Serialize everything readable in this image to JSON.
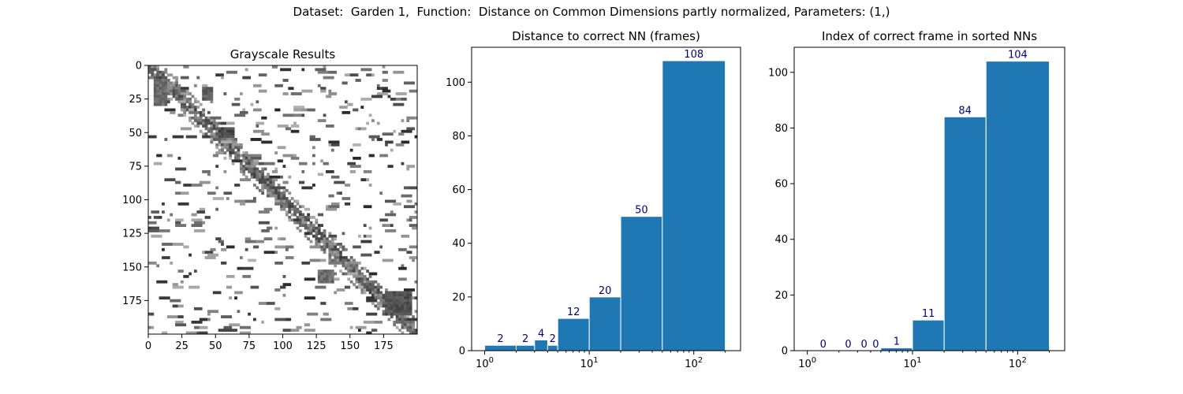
{
  "suptitle": "Dataset:  Garden 1,  Function:  Distance on Common Dimensions partly normalized, Parameters: (1,)",
  "colors": {
    "bar": "#1f77b4",
    "bar_edge": "#ffffff",
    "label": "#00007f",
    "axis": "#000000"
  },
  "chart_data": [
    {
      "type": "heatmap",
      "title": "Grayscale Results",
      "xlim": [
        0,
        200
      ],
      "ylim": [
        200,
        0
      ],
      "x_ticks": [
        0,
        25,
        50,
        75,
        100,
        125,
        150,
        175
      ],
      "y_ticks": [
        0,
        25,
        50,
        75,
        100,
        125,
        150,
        175
      ],
      "colormap": "gray",
      "note_values": "200x200 matrix of per-frame results; white = no match, dark = strong match; main structure along the diagonal"
    },
    {
      "type": "bar",
      "title": "Distance to correct NN (frames)",
      "xscale": "log",
      "xlim": [
        0.75,
        280
      ],
      "ylim": [
        0,
        113
      ],
      "x_tick_labels": [
        "10^0",
        "10^1",
        "10^2"
      ],
      "y_ticks": [
        0,
        20,
        40,
        60,
        80,
        100
      ],
      "bins": [
        [
          1,
          2
        ],
        [
          2,
          3
        ],
        [
          3,
          4
        ],
        [
          4,
          5
        ],
        [
          5,
          10
        ],
        [
          10,
          20
        ],
        [
          20,
          50
        ],
        [
          50,
          200
        ]
      ],
      "values": [
        2,
        2,
        4,
        2,
        12,
        20,
        50,
        108
      ],
      "labels": [
        "2",
        "2",
        "4",
        "2",
        "12",
        "20",
        "50",
        "108"
      ]
    },
    {
      "type": "bar",
      "title": "Index of correct frame in sorted NNs",
      "xscale": "log",
      "xlim": [
        0.75,
        280
      ],
      "ylim": [
        0,
        109
      ],
      "x_tick_labels": [
        "10^0",
        "10^1",
        "10^2"
      ],
      "y_ticks": [
        0,
        20,
        40,
        60,
        80,
        100
      ],
      "bins": [
        [
          1,
          2
        ],
        [
          2,
          3
        ],
        [
          3,
          4
        ],
        [
          4,
          5
        ],
        [
          5,
          10
        ],
        [
          10,
          20
        ],
        [
          20,
          50
        ],
        [
          50,
          200
        ]
      ],
      "values": [
        0,
        0,
        0,
        0,
        1,
        11,
        84,
        104
      ],
      "labels": [
        "0",
        "0",
        "0",
        "0",
        "1",
        "11",
        "84",
        "104"
      ]
    }
  ]
}
